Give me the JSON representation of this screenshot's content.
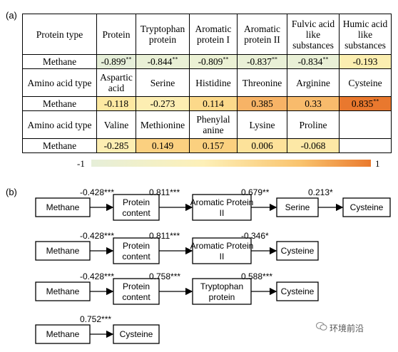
{
  "panel_a_label": "(a)",
  "panel_b_label": "(b)",
  "table": {
    "rows": [
      {
        "kind": "hdr",
        "cells": [
          {
            "text": "Protein type"
          },
          {
            "text": "Protein"
          },
          {
            "text": "Tryptophan protein"
          },
          {
            "text": "Aromatic protein I"
          },
          {
            "text": "Aromatic protein II"
          },
          {
            "text": "Fulvic acid like substances"
          },
          {
            "text": "Humic acid like substances"
          }
        ]
      },
      {
        "kind": "val",
        "cells": [
          {
            "text": "Methane"
          },
          {
            "text": "-0.899",
            "sig": "**",
            "color": "#e6efd9"
          },
          {
            "text": "-0.844",
            "sig": "**",
            "color": "#e9f0d6"
          },
          {
            "text": "-0.809",
            "sig": "**",
            "color": "#ebf1d4"
          },
          {
            "text": "-0.837",
            "sig": "**",
            "color": "#e9f0d6"
          },
          {
            "text": "-0.834",
            "sig": "**",
            "color": "#e9f0d6"
          },
          {
            "text": "-0.193",
            "sig": "",
            "color": "#fbeeb0"
          }
        ]
      },
      {
        "kind": "hdr2",
        "cells": [
          {
            "text": "Amino acid type"
          },
          {
            "text": "Aspartic acid"
          },
          {
            "text": "Serine"
          },
          {
            "text": "Histidine"
          },
          {
            "text": "Threonine"
          },
          {
            "text": "Arginine"
          },
          {
            "text": "Cysteine"
          }
        ]
      },
      {
        "kind": "val",
        "cells": [
          {
            "text": "Methane"
          },
          {
            "text": "-0.118",
            "sig": "",
            "color": "#fde9a2"
          },
          {
            "text": "-0.273",
            "sig": "",
            "color": "#fdeeb2"
          },
          {
            "text": "0.114",
            "sig": "",
            "color": "#fcd98a"
          },
          {
            "text": "0.385",
            "sig": "",
            "color": "#f7b366"
          },
          {
            "text": "0.33",
            "sig": "",
            "color": "#f8bb6c"
          },
          {
            "text": "0.835",
            "sig": "**",
            "color": "#e9782e"
          }
        ]
      },
      {
        "kind": "hdr3",
        "cells": [
          {
            "text": "Amino acid type"
          },
          {
            "text": "Valine"
          },
          {
            "text": "Methionine"
          },
          {
            "text": "Phenylal anine"
          },
          {
            "text": "Lysine"
          },
          {
            "text": "Proline"
          },
          {
            "text": ""
          }
        ]
      },
      {
        "kind": "val",
        "cells": [
          {
            "text": "Methane"
          },
          {
            "text": "-0.285",
            "sig": "",
            "color": "#fdeeb2"
          },
          {
            "text": "0.149",
            "sig": "",
            "color": "#fbd080"
          },
          {
            "text": "0.157",
            "sig": "",
            "color": "#fbd07f"
          },
          {
            "text": "0.006",
            "sig": "",
            "color": "#fde29a"
          },
          {
            "text": "-0.068",
            "sig": "",
            "color": "#fde8a6"
          },
          {
            "text": "",
            "sig": "",
            "color": "#ffffff"
          }
        ]
      }
    ]
  },
  "colorbar": {
    "min_label": "-1",
    "max_label": "1"
  },
  "paths": [
    {
      "nodes": [
        "Methane",
        "Protein content",
        "Aromatic Protein II",
        "Serine",
        "Cysteine"
      ],
      "coefs": [
        "-0.428***",
        "0.811***",
        "0.679**",
        "0.213*"
      ]
    },
    {
      "nodes": [
        "Methane",
        "Protein content",
        "Aromatic Protein II",
        "Cysteine"
      ],
      "coefs": [
        "-0.428***",
        "0.811***",
        "-0.346*"
      ]
    },
    {
      "nodes": [
        "Methane",
        "Protein content",
        "Tryptophan protein",
        "Cysteine"
      ],
      "coefs": [
        "-0.428***",
        "0.758***",
        "0.588***"
      ]
    },
    {
      "nodes": [
        "Methane",
        "Cysteine"
      ],
      "coefs": [
        "0.752***"
      ]
    }
  ],
  "watermark": "环境前沿",
  "icons": {
    "watermark": "wechat-icon"
  }
}
